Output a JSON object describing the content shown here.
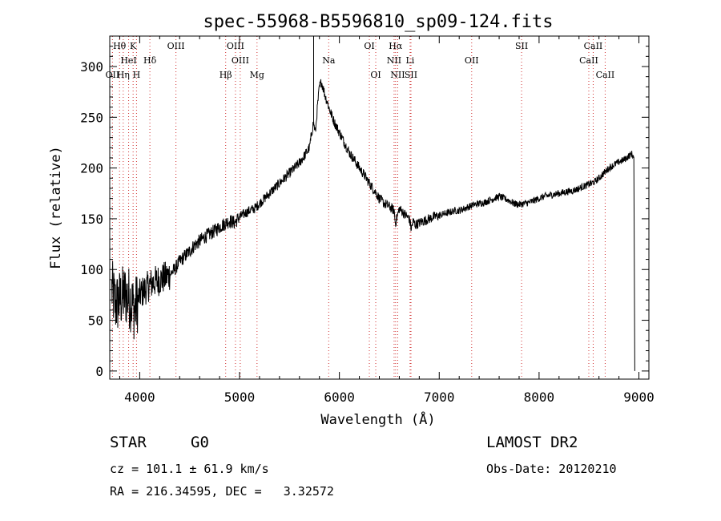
{
  "chart_data": {
    "type": "line",
    "title": "spec-55968-B5596810_sp09-124.fits",
    "xlabel": "Wavelength (Å)",
    "ylabel": "Flux (relative)",
    "xlim": [
      3700,
      9100
    ],
    "ylim": [
      -8,
      330
    ],
    "xticks": [
      4000,
      5000,
      6000,
      7000,
      8000,
      9000
    ],
    "yticks": [
      0,
      50,
      100,
      150,
      200,
      250,
      300
    ],
    "grid": false,
    "line_color": "#000000",
    "marker_line_color": "#d03030",
    "series": [
      {
        "x": [
          3720,
          3760,
          3800,
          3850,
          3900,
          3950,
          4000,
          4050,
          4100,
          4150,
          4200,
          4250,
          4300,
          4350,
          4400,
          4450,
          4500,
          4550,
          4600,
          4650,
          4700,
          4750,
          4800,
          4850,
          4900,
          4950,
          5000,
          5050,
          5100,
          5150,
          5200,
          5250,
          5300,
          5350,
          5400,
          5450,
          5500,
          5550,
          5600,
          5650,
          5700,
          5740,
          5760,
          5780,
          5800,
          5820,
          5840,
          5860,
          5880,
          5900,
          5950,
          6000,
          6050,
          6100,
          6150,
          6200,
          6250,
          6300,
          6350,
          6400,
          6450,
          6500,
          6550,
          6560,
          6600,
          6650,
          6700,
          6720,
          6740,
          6760,
          6800,
          6850,
          6900,
          6950,
          7000,
          7050,
          7100,
          7150,
          7200,
          7250,
          7300,
          7350,
          7400,
          7450,
          7500,
          7550,
          7600,
          7650,
          7700,
          7750,
          7800,
          7850,
          7900,
          7950,
          8000,
          8050,
          8100,
          8150,
          8200,
          8250,
          8300,
          8350,
          8400,
          8450,
          8500,
          8550,
          8600,
          8650,
          8700,
          8750,
          8800,
          8850,
          8900,
          8930,
          8950
        ],
        "y": [
          80,
          65,
          70,
          75,
          72,
          60,
          75,
          80,
          85,
          88,
          90,
          92,
          95,
          100,
          108,
          113,
          118,
          124,
          128,
          132,
          135,
          138,
          142,
          145,
          148,
          146,
          152,
          155,
          158,
          160,
          165,
          170,
          175,
          180,
          185,
          190,
          195,
          200,
          205,
          212,
          220,
          245,
          235,
          260,
          280,
          285,
          278,
          270,
          265,
          258,
          245,
          235,
          225,
          215,
          208,
          200,
          193,
          185,
          178,
          170,
          165,
          162,
          158,
          145,
          160,
          155,
          150,
          140,
          148,
          144,
          146,
          148,
          150,
          152,
          153,
          155,
          156,
          158,
          158,
          160,
          162,
          164,
          165,
          166,
          168,
          170,
          172,
          170,
          168,
          165,
          164,
          165,
          166,
          168,
          170,
          172,
          173,
          174,
          175,
          176,
          177,
          178,
          180,
          182,
          184,
          186,
          190,
          195,
          200,
          203,
          206,
          208,
          212,
          214,
          210
        ]
      }
    ],
    "lines": [
      {
        "label": "Hθ",
        "x": 3798,
        "row": 1
      },
      {
        "label": "K",
        "x": 3934,
        "row": 1
      },
      {
        "label": "OIII",
        "x": 4363,
        "row": 1
      },
      {
        "label": "OIII",
        "x": 4959,
        "row": 1
      },
      {
        "label": "OI",
        "x": 6300,
        "row": 1
      },
      {
        "label": "Hα",
        "x": 6563,
        "row": 1
      },
      {
        "label": "SII",
        "x": 7825,
        "row": 1
      },
      {
        "label": "CaII",
        "x": 8542,
        "row": 1
      },
      {
        "label": "HeI",
        "x": 3889,
        "row": 2
      },
      {
        "label": "Hδ",
        "x": 4102,
        "row": 2
      },
      {
        "label": "OIII",
        "x": 5007,
        "row": 2
      },
      {
        "label": "Na",
        "x": 5893,
        "row": 2
      },
      {
        "label": "NII",
        "x": 6548,
        "row": 2
      },
      {
        "label": "Li",
        "x": 6708,
        "row": 2
      },
      {
        "label": "OII",
        "x": 7325,
        "row": 2
      },
      {
        "label": "CaII",
        "x": 8498,
        "row": 2
      },
      {
        "label": "OII",
        "x": 3727,
        "row": 3
      },
      {
        "label": "Hη",
        "x": 3835,
        "row": 3
      },
      {
        "label": "H",
        "x": 3968,
        "row": 3
      },
      {
        "label": "Hβ",
        "x": 4861,
        "row": 3
      },
      {
        "label": "Mg",
        "x": 5175,
        "row": 3
      },
      {
        "label": "OI",
        "x": 6364,
        "row": 3
      },
      {
        "label": "NII",
        "x": 6584,
        "row": 3
      },
      {
        "label": "SII",
        "x": 6717,
        "row": 3
      },
      {
        "label": "CaII",
        "x": 8662,
        "row": 3
      }
    ]
  },
  "info": {
    "object_class": "STAR",
    "subclass": "G0",
    "survey": "LAMOST DR2",
    "redshift": "cz = 101.1 ± 61.9 km/s",
    "obs_date": "Obs-Date: 20120210",
    "coords": "RA = 216.34595, DEC =   3.32572"
  }
}
